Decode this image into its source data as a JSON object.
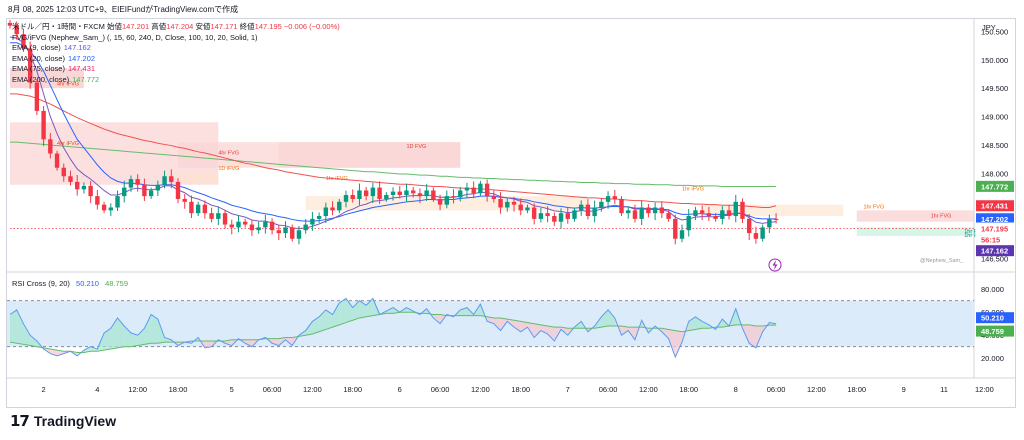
{
  "capture_line": "8月 08, 2025 12:03 UTC+9、EIEIFundがTradingView.comで作成",
  "legend": {
    "symbol": "米ドル／円・1時間・FXCM",
    "ohlc": [
      {
        "label": "始値",
        "value": "147.201"
      },
      {
        "label": "高値",
        "value": "147.204"
      },
      {
        "label": "安値",
        "value": "147.171"
      },
      {
        "label": "終値",
        "value": "147.195"
      }
    ],
    "change": "−0.006 (−0.00%)",
    "indicators": [
      {
        "label": "FVG/iFVG (Nephew_Sam_) (, 15, 60, 240, D, Close, 100, 10, 20, Solid, 1)",
        "value": "",
        "color": "#131722"
      },
      {
        "label": "EMA (9, close)",
        "value": "147.162",
        "color": "#5b5bd6"
      },
      {
        "label": "EMA (20, close)",
        "value": "147.202",
        "color": "#2962ff"
      },
      {
        "label": "EMA (75, close)",
        "value": "147.431",
        "color": "#e91e63"
      },
      {
        "label": "EMA (200, close)",
        "value": "147.772",
        "color": "#4caf50"
      }
    ]
  },
  "rsi_legend": {
    "name": "RSI Cross (9, 20)",
    "v1": "50.210",
    "v2": "48.759",
    "c1": "#2962ff",
    "c2": "#4caf50"
  },
  "brand": {
    "logo": "17",
    "name": "TradingView"
  },
  "watermark": "@Nephew_Sam_",
  "colors": {
    "up": "#089981",
    "down": "#f23645",
    "ema9": "#7e57c2",
    "ema20": "#2962ff",
    "ema75": "#ef5350",
    "ema200": "#66bb6a",
    "rsi": "#5b9bf0",
    "rsi_ma": "#66bb6a"
  },
  "chart_data": {
    "type": "candlestick",
    "currency": "JPY",
    "ylim": [
      146.3,
      150.7
    ],
    "price_ticks": [
      "150.500",
      "150.000",
      "149.500",
      "149.000",
      "148.500",
      "148.000",
      "146.500"
    ],
    "x_ticks": [
      {
        "label": "2",
        "i": 5
      },
      {
        "label": "4",
        "i": 13
      },
      {
        "label": "12:00",
        "i": 19
      },
      {
        "label": "18:00",
        "i": 25
      },
      {
        "label": "5",
        "i": 33
      },
      {
        "label": "06:00",
        "i": 39
      },
      {
        "label": "12:00",
        "i": 45
      },
      {
        "label": "18:00",
        "i": 51
      },
      {
        "label": "6",
        "i": 58
      },
      {
        "label": "06:00",
        "i": 64
      },
      {
        "label": "12:00",
        "i": 70
      },
      {
        "label": "18:00",
        "i": 76
      },
      {
        "label": "7",
        "i": 83
      },
      {
        "label": "06:00",
        "i": 89
      },
      {
        "label": "12:00",
        "i": 95
      },
      {
        "label": "18:00",
        "i": 101
      },
      {
        "label": "8",
        "i": 108
      },
      {
        "label": "06:00",
        "i": 114
      },
      {
        "label": "12:00",
        "i": 120
      },
      {
        "label": "18:00",
        "i": 126
      },
      {
        "label": "9",
        "i": 133
      },
      {
        "label": "11",
        "i": 139
      },
      {
        "label": "12:00",
        "i": 145
      }
    ],
    "close": [
      150.6,
      150.45,
      150.2,
      149.6,
      149.1,
      148.6,
      148.35,
      148.1,
      147.95,
      147.85,
      147.72,
      147.78,
      147.6,
      147.45,
      147.35,
      147.4,
      147.6,
      147.75,
      147.9,
      147.8,
      147.6,
      147.7,
      147.8,
      147.95,
      147.85,
      147.55,
      147.5,
      147.3,
      147.45,
      147.3,
      147.2,
      147.3,
      147.1,
      147.05,
      147.15,
      147.1,
      147.0,
      147.05,
      147.15,
      147.0,
      146.95,
      147.05,
      146.85,
      147.0,
      147.1,
      147.2,
      147.25,
      147.4,
      147.35,
      147.5,
      147.62,
      147.55,
      147.7,
      147.6,
      147.75,
      147.55,
      147.62,
      147.68,
      147.62,
      147.7,
      147.65,
      147.6,
      147.7,
      147.55,
      147.45,
      147.6,
      147.58,
      147.7,
      147.75,
      147.65,
      147.82,
      147.6,
      147.55,
      147.4,
      147.5,
      147.45,
      147.35,
      147.4,
      147.2,
      147.3,
      147.25,
      147.15,
      147.3,
      147.2,
      147.35,
      147.45,
      147.25,
      147.4,
      147.5,
      147.6,
      147.55,
      147.3,
      147.35,
      147.2,
      147.4,
      147.3,
      147.4,
      147.3,
      147.2,
      146.85,
      147.0,
      147.25,
      147.35,
      147.3,
      147.25,
      147.2,
      147.35,
      147.25,
      147.5,
      147.2,
      146.95,
      146.85,
      147.05,
      147.2,
      147.18
    ],
    "ema9": [
      150.4,
      150.38,
      150.3,
      150.1,
      149.8,
      149.4,
      149.0,
      148.7,
      148.45,
      148.25,
      148.08,
      147.98,
      147.9,
      147.8,
      147.7,
      147.62,
      147.62,
      147.66,
      147.72,
      147.74,
      147.72,
      147.71,
      147.73,
      147.78,
      147.78,
      147.71,
      147.66,
      147.58,
      147.55,
      147.5,
      147.44,
      147.41,
      147.35,
      147.29,
      147.26,
      147.23,
      147.18,
      147.16,
      147.16,
      147.13,
      147.09,
      147.08,
      147.04,
      147.03,
      147.04,
      147.07,
      147.11,
      147.16,
      147.2,
      147.26,
      147.33,
      147.37,
      147.43,
      147.46,
      147.51,
      147.52,
      147.54,
      147.57,
      147.58,
      147.6,
      147.61,
      147.61,
      147.62,
      147.61,
      147.58,
      147.58,
      147.58,
      147.6,
      147.63,
      147.64,
      147.67,
      147.66,
      147.64,
      147.59,
      147.57,
      147.55,
      147.51,
      147.49,
      147.43,
      147.41,
      147.38,
      147.34,
      147.33,
      147.31,
      147.32,
      147.35,
      147.33,
      147.34,
      147.37,
      147.42,
      147.44,
      147.42,
      147.41,
      147.37,
      147.38,
      147.36,
      147.37,
      147.36,
      147.33,
      147.23,
      147.18,
      147.2,
      147.23,
      147.24,
      147.24,
      147.23,
      147.26,
      147.26,
      147.31,
      147.29,
      147.22,
      147.14,
      147.12,
      147.14,
      147.15
    ],
    "ema20": [
      150.3,
      150.3,
      150.25,
      150.15,
      150.0,
      149.8,
      149.55,
      149.3,
      149.05,
      148.82,
      148.6,
      148.45,
      148.3,
      148.15,
      148.02,
      147.92,
      147.86,
      147.83,
      147.83,
      147.82,
      147.8,
      147.79,
      147.79,
      147.8,
      147.8,
      147.78,
      147.75,
      147.7,
      147.66,
      147.62,
      147.57,
      147.53,
      147.49,
      147.44,
      147.41,
      147.38,
      147.34,
      147.31,
      147.29,
      147.27,
      147.24,
      147.22,
      147.19,
      147.17,
      147.16,
      147.16,
      147.17,
      147.19,
      147.21,
      147.24,
      147.28,
      147.31,
      147.34,
      147.37,
      147.4,
      147.42,
      147.44,
      147.46,
      147.48,
      147.5,
      147.51,
      147.52,
      147.54,
      147.54,
      147.53,
      147.54,
      147.54,
      147.56,
      147.57,
      147.58,
      147.6,
      147.6,
      147.6,
      147.58,
      147.57,
      147.56,
      147.54,
      147.53,
      147.5,
      147.48,
      147.46,
      147.43,
      147.42,
      147.4,
      147.39,
      147.4,
      147.39,
      147.39,
      147.4,
      147.41,
      147.42,
      147.41,
      147.41,
      147.39,
      147.39,
      147.38,
      147.38,
      147.37,
      147.36,
      147.31,
      147.28,
      147.28,
      147.29,
      147.29,
      147.28,
      147.28,
      147.28,
      147.28,
      147.3,
      147.29,
      147.25,
      147.21,
      147.2,
      147.2,
      147.2
    ],
    "ema75": [
      149.4,
      149.4,
      149.38,
      149.36,
      149.32,
      149.27,
      149.22,
      149.16,
      149.1,
      149.04,
      148.98,
      148.93,
      148.88,
      148.83,
      148.78,
      148.74,
      148.7,
      148.67,
      148.64,
      148.61,
      148.58,
      148.56,
      148.53,
      148.51,
      148.49,
      148.46,
      148.44,
      148.41,
      148.38,
      148.36,
      148.33,
      148.3,
      148.27,
      148.24,
      148.21,
      148.18,
      148.16,
      148.13,
      148.1,
      148.08,
      148.06,
      148.03,
      148.01,
      147.99,
      147.97,
      147.95,
      147.93,
      147.92,
      147.91,
      147.9,
      147.89,
      147.88,
      147.87,
      147.86,
      147.85,
      147.84,
      147.83,
      147.82,
      147.81,
      147.81,
      147.8,
      147.79,
      147.78,
      147.77,
      147.77,
      147.76,
      147.75,
      147.74,
      147.74,
      147.73,
      147.73,
      147.72,
      147.71,
      147.7,
      147.69,
      147.68,
      147.67,
      147.66,
      147.65,
      147.64,
      147.63,
      147.62,
      147.61,
      147.6,
      147.59,
      147.58,
      147.57,
      147.57,
      147.56,
      147.55,
      147.55,
      147.54,
      147.53,
      147.52,
      147.52,
      147.51,
      147.5,
      147.5,
      147.49,
      147.48,
      147.47,
      147.47,
      147.46,
      147.46,
      147.45,
      147.45,
      147.44,
      147.44,
      147.44,
      147.43,
      147.42,
      147.41,
      147.4,
      147.4,
      147.43
    ],
    "ema200": [
      148.55,
      148.55,
      148.54,
      148.53,
      148.52,
      148.51,
      148.5,
      148.49,
      148.48,
      148.47,
      148.46,
      148.45,
      148.44,
      148.43,
      148.42,
      148.41,
      148.4,
      148.39,
      148.38,
      148.37,
      148.36,
      148.35,
      148.34,
      148.33,
      148.32,
      148.31,
      148.3,
      148.29,
      148.28,
      148.27,
      148.26,
      148.25,
      148.24,
      148.23,
      148.22,
      148.21,
      148.2,
      148.19,
      148.18,
      148.17,
      148.16,
      148.15,
      148.14,
      148.13,
      148.12,
      148.11,
      148.1,
      148.09,
      148.08,
      148.07,
      148.06,
      148.05,
      148.04,
      148.03,
      148.03,
      148.02,
      148.01,
      148.0,
      147.99,
      147.99,
      147.98,
      147.97,
      147.97,
      147.96,
      147.95,
      147.95,
      147.94,
      147.93,
      147.93,
      147.92,
      147.92,
      147.91,
      147.91,
      147.9,
      147.9,
      147.89,
      147.89,
      147.88,
      147.88,
      147.87,
      147.87,
      147.86,
      147.86,
      147.85,
      147.85,
      147.84,
      147.84,
      147.84,
      147.83,
      147.83,
      147.82,
      147.82,
      147.82,
      147.81,
      147.81,
      147.81,
      147.8,
      147.8,
      147.8,
      147.79,
      147.79,
      147.79,
      147.78,
      147.78,
      147.78,
      147.78,
      147.77,
      147.77,
      147.77,
      147.77,
      147.77,
      147.77,
      147.77,
      147.77,
      147.77
    ],
    "fvg_zones": [
      {
        "label": "4hr iFVG",
        "x0": 0,
        "x1": 11,
        "y0": 149.85,
        "y1": 149.5,
        "fill": "#f8c9c9",
        "text": "#d84315"
      },
      {
        "label": "4hr iFVG",
        "x0": 0,
        "x1": 31,
        "y0": 148.9,
        "y1": 147.8,
        "fill": "#fbd5d5",
        "text": "#d84315"
      },
      {
        "label": "4hr FVG",
        "x0": 25,
        "x1": 67,
        "y0": 148.55,
        "y1": 148.1,
        "fill": "#fbd5d5",
        "text": "#e53935"
      },
      {
        "label": "1D FVG",
        "x0": 40,
        "x1": 67,
        "y0": 148.55,
        "y1": 148.1,
        "fill": "#fbd5d5",
        "text": "#e53935"
      },
      {
        "label": "1D iFVG",
        "x0": 25,
        "x1": 31,
        "y0": 148.0,
        "y1": 147.85,
        "fill": "#fde3cf",
        "text": "#ef6c00"
      },
      {
        "label": "1hr iFVG",
        "x0": 44,
        "x1": 86,
        "y0": 147.6,
        "y1": 147.35,
        "fill": "#fde8d4",
        "text": "#ef6c00"
      },
      {
        "label": "1hr iFVG",
        "x0": 103,
        "x1": 124,
        "y0": 147.45,
        "y1": 147.25,
        "fill": "#fde8d4",
        "text": "#ef6c00"
      },
      {
        "label": "1hr FVG",
        "x0": 126,
        "x1": 154,
        "y0": 147.35,
        "y1": 147.15,
        "fill": "#fad2d2",
        "text": "#e53935"
      },
      {
        "label": "1hr FVG",
        "x0": 126,
        "x1": 158,
        "y0": 147.05,
        "y1": 146.9,
        "fill": "#c8f2df",
        "text": "#00897b"
      }
    ],
    "fvg_text": [
      {
        "label": "4hr iFVG",
        "i": 7,
        "y": 149.55,
        "color": "#d84315"
      },
      {
        "label": "4hr iFVG",
        "i": 7,
        "y": 148.5,
        "color": "#d84315"
      },
      {
        "label": "4hr FVG",
        "i": 31,
        "y": 148.33,
        "color": "#e53935"
      },
      {
        "label": "1D FVG",
        "i": 59,
        "y": 148.45,
        "color": "#e53935"
      },
      {
        "label": "1D iFVG",
        "i": 31,
        "y": 148.06,
        "color": "#ef6c00"
      },
      {
        "label": "1hr iFVG",
        "i": 47,
        "y": 147.88,
        "color": "#ef6c00"
      },
      {
        "label": "1hr iFVG",
        "i": 100,
        "y": 147.7,
        "color": "#ef6c00"
      },
      {
        "label": "1hr FVG",
        "i": 127,
        "y": 147.38,
        "color": "#ef6c00"
      },
      {
        "label": "1hr FVG",
        "i": 137,
        "y": 147.22,
        "color": "#e53935"
      },
      {
        "label": "1hr FVG",
        "i": 142,
        "y": 146.95,
        "color": "#00897b"
      },
      {
        "label": "1hr iFVG",
        "i": 142,
        "y": 146.88,
        "color": "#00897b"
      }
    ],
    "price_badges": [
      {
        "value": "147.772",
        "price": 147.772,
        "bg": "#4caf50",
        "fg": "#ffffff"
      },
      {
        "value": "147.431",
        "price": 147.431,
        "bg": "#f23645",
        "fg": "#ffffff"
      },
      {
        "value": "147.202",
        "price": 147.202,
        "bg": "#2962ff",
        "fg": "#ffffff"
      },
      {
        "value": "147.195",
        "price": 147.03,
        "bg": "#ffffff",
        "fg": "#f23645"
      },
      {
        "value": "56:15",
        "price": 146.84,
        "bg": "#ffffff",
        "fg": "#f23645"
      },
      {
        "value": "147.162",
        "price": 146.64,
        "bg": "#5e35b1",
        "fg": "#ffffff"
      }
    ],
    "rsi": {
      "name": "RSI Cross (9, 20)",
      "ylim": [
        8,
        88
      ],
      "ticks": [
        "80.000",
        "60.000",
        "40.000",
        "20.000"
      ],
      "band": [
        70,
        30
      ],
      "rsi": [
        58,
        62,
        50,
        40,
        35,
        28,
        24,
        22,
        24,
        26,
        22,
        27,
        30,
        28,
        42,
        46,
        55,
        48,
        42,
        40,
        46,
        58,
        54,
        38,
        36,
        31,
        34,
        33,
        38,
        29,
        30,
        36,
        33,
        31,
        37,
        33,
        30,
        36,
        38,
        33,
        31,
        36,
        31,
        40,
        44,
        52,
        56,
        62,
        58,
        68,
        72,
        64,
        70,
        66,
        72,
        58,
        61,
        64,
        60,
        64,
        61,
        58,
        63,
        55,
        50,
        58,
        56,
        62,
        64,
        58,
        67,
        52,
        50,
        44,
        52,
        47,
        43,
        47,
        38,
        44,
        41,
        35,
        45,
        40,
        47,
        52,
        43,
        48,
        56,
        62,
        55,
        40,
        44,
        36,
        53,
        42,
        48,
        43,
        37,
        21,
        34,
        52,
        56,
        52,
        49,
        45,
        54,
        48,
        63,
        46,
        33,
        29,
        43,
        51,
        50
      ],
      "ma": [
        34,
        33,
        32,
        31,
        30,
        29,
        28,
        27,
        26,
        26,
        25,
        25,
        26,
        26,
        27,
        28,
        29,
        30,
        30,
        31,
        32,
        33,
        33,
        34,
        34,
        34,
        34,
        35,
        35,
        35,
        35,
        35,
        35,
        36,
        36,
        36,
        36,
        36,
        37,
        37,
        37,
        38,
        38,
        39,
        40,
        41,
        43,
        45,
        47,
        49,
        51,
        53,
        55,
        56,
        57,
        58,
        59,
        59,
        60,
        60,
        60,
        59,
        59,
        58,
        58,
        57,
        57,
        57,
        57,
        57,
        57,
        56,
        55,
        55,
        54,
        53,
        52,
        51,
        50,
        49,
        48,
        47,
        47,
        46,
        46,
        46,
        46,
        46,
        47,
        48,
        48,
        48,
        47,
        47,
        47,
        46,
        46,
        46,
        45,
        44,
        43,
        44,
        45,
        46,
        46,
        47,
        47,
        48,
        49,
        49,
        49,
        48,
        48,
        48.8,
        48.8
      ]
    }
  }
}
